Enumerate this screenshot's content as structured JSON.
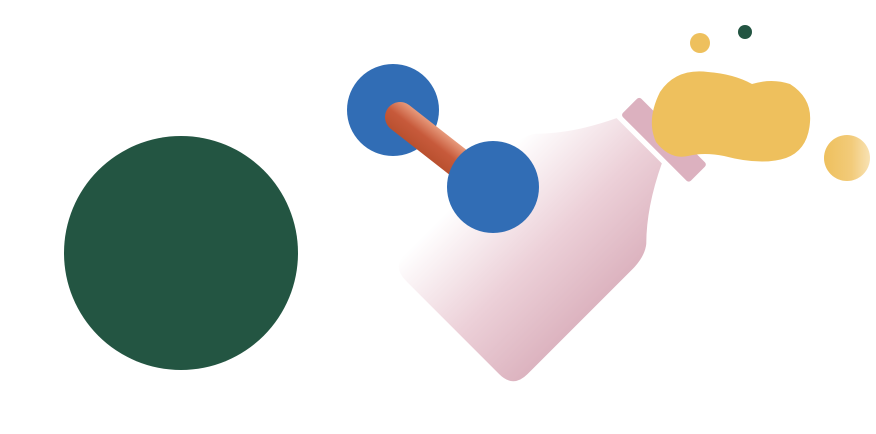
{
  "illustration": {
    "elements": [
      "green-circle-icon",
      "blue-molecule-icon",
      "milk-bottle-icon",
      "yellow-splash-icon"
    ],
    "colors": {
      "background": "#ffffff",
      "green": "#235542",
      "blue": "#316db5",
      "bond_light": "#e79a7c",
      "bond_dark": "#c75a3b",
      "bottle_light": "#ffffff",
      "bottle_pink": "#dcb3bf",
      "cap": "#dcb1bf",
      "yellow": "#eec05d",
      "yellow_light": "#f8e2b4",
      "dot_dark_green": "#235542"
    }
  }
}
